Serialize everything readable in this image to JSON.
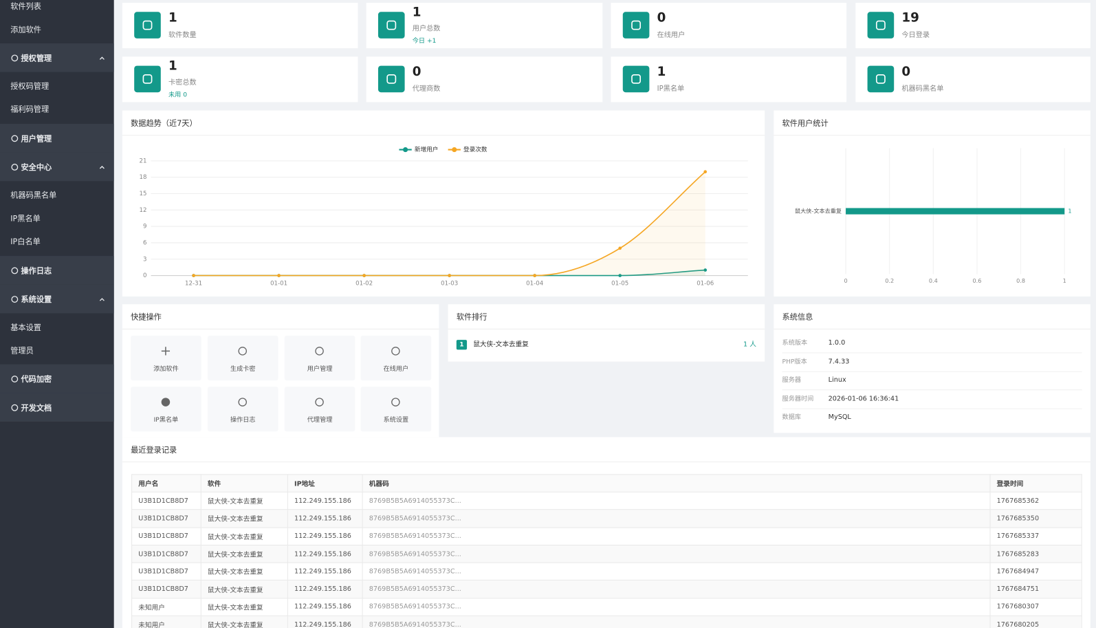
{
  "sidebar": [
    "软件列表",
    "添加软件",
    "授权管理",
    "授权码管理",
    "福利码管理",
    "用户管理",
    "安全中心",
    "机器码黑名单",
    "IP黑名单",
    "IP白名单",
    "操作日志",
    "系统设置",
    "基本设置",
    "管理员",
    "代码加密",
    "开发文档"
  ],
  "stats": [
    {
      "value": 1,
      "label": "软件数量"
    },
    {
      "value": 1,
      "label": "用户总数",
      "note": "今日 +1"
    },
    {
      "value": 0,
      "label": "在线用户"
    },
    {
      "value": 19,
      "label": "今日登录"
    },
    {
      "value": 1,
      "label": "卡密总数",
      "note": "未用 0"
    },
    {
      "value": 0,
      "label": "代理商数"
    },
    {
      "value": 1,
      "label": "IP黑名单"
    },
    {
      "value": 0,
      "label": "机器码黑名单"
    }
  ],
  "chart_data": [
    {
      "type": "line",
      "title": "数据趋势（近7天）",
      "categories": [
        "12-31",
        "01-01",
        "01-02",
        "01-03",
        "01-04",
        "01-05",
        "01-06"
      ],
      "series": [
        {
          "name": "新增用户",
          "color": "#13998a",
          "values": [
            0,
            0,
            0,
            0,
            0,
            0,
            1
          ]
        },
        {
          "name": "登录次数",
          "color": "#f5a623",
          "values": [
            0,
            0,
            0,
            0,
            0,
            5,
            19
          ]
        }
      ],
      "ylim": [
        0,
        21
      ],
      "yticks": [
        0,
        3,
        6,
        9,
        12,
        15,
        18,
        21
      ],
      "grid": true,
      "legend": "top"
    },
    {
      "type": "bar",
      "orientation": "horizontal",
      "title": "软件用户统计",
      "categories": [
        "鼠大侠-文本去重复"
      ],
      "values": [
        1
      ],
      "color": "#13998a",
      "xlim": [
        0,
        1
      ],
      "xticks": [
        0,
        0.2,
        0.4,
        0.6,
        0.8,
        1
      ],
      "grid": true
    }
  ],
  "quick_actions": {
    "title": "快捷操作",
    "items": [
      "添加软件",
      "生成卡密",
      "用户管理",
      "在线用户",
      "IP黑名单",
      "操作日志",
      "代理管理",
      "系统设置"
    ]
  },
  "ranking": {
    "title": "软件排行",
    "rows": [
      {
        "rank": 1,
        "name": "鼠大侠-文本去重复",
        "count": "1 人"
      }
    ]
  },
  "system_info": {
    "title": "系统信息",
    "rows": [
      [
        "系统版本",
        "1.0.0"
      ],
      [
        "PHP版本",
        "7.4.33"
      ],
      [
        "服务器",
        "Linux"
      ],
      [
        "服务器时间",
        "2026-01-06 16:36:41"
      ],
      [
        "数据库",
        "MySQL"
      ]
    ]
  },
  "recent_logins": {
    "title": "最近登录记录",
    "columns": [
      "用户名",
      "软件",
      "IP地址",
      "机器码",
      "登录时间"
    ],
    "rows": [
      [
        "U3B1D1CB8D7",
        "鼠大侠-文本去重复",
        "112.249.155.186",
        "8769B5B5A6914055373C...",
        "1767685362"
      ],
      [
        "U3B1D1CB8D7",
        "鼠大侠-文本去重复",
        "112.249.155.186",
        "8769B5B5A6914055373C...",
        "1767685350"
      ],
      [
        "U3B1D1CB8D7",
        "鼠大侠-文本去重复",
        "112.249.155.186",
        "8769B5B5A6914055373C...",
        "1767685337"
      ],
      [
        "U3B1D1CB8D7",
        "鼠大侠-文本去重复",
        "112.249.155.186",
        "8769B5B5A6914055373C...",
        "1767685283"
      ],
      [
        "U3B1D1CB8D7",
        "鼠大侠-文本去重复",
        "112.249.155.186",
        "8769B5B5A6914055373C...",
        "1767684947"
      ],
      [
        "U3B1D1CB8D7",
        "鼠大侠-文本去重复",
        "112.249.155.186",
        "8769B5B5A6914055373C...",
        "1767684751"
      ],
      [
        "未知用户",
        "鼠大侠-文本去重复",
        "112.249.155.186",
        "8769B5B5A6914055373C...",
        "1767680307"
      ],
      [
        "未知用户",
        "鼠大侠-文本去重复",
        "112.249.155.186",
        "8769B5B5A6914055373C...",
        "1767680205"
      ]
    ]
  }
}
